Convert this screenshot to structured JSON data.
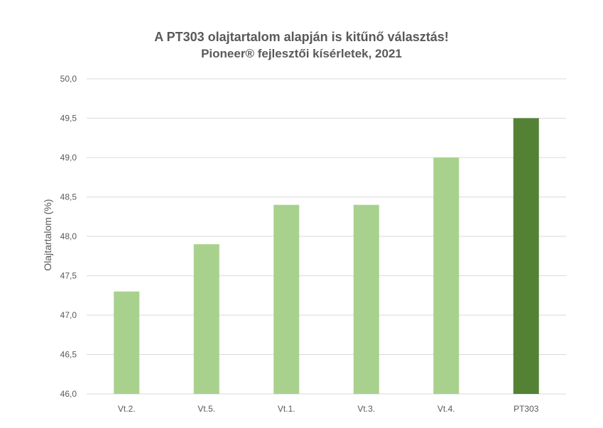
{
  "chart_data": {
    "type": "bar",
    "title": "A PT303 olajtartalom alapján is kitűnő választás!",
    "subtitle": "Pioneer® fejlesztői kísérletek, 2021",
    "xlabel": "",
    "ylabel": "Olajtartalom (%)",
    "categories": [
      "Vt.2.",
      "Vt.5.",
      "Vt.1.",
      "Vt.3.",
      "Vt.4.",
      "PT303"
    ],
    "values": [
      47.3,
      47.9,
      48.4,
      48.4,
      49.0,
      49.5
    ],
    "ylim": [
      46.0,
      50.0
    ],
    "yticks": [
      "46,0",
      "46,5",
      "47,0",
      "47,5",
      "48,0",
      "48,5",
      "49,0",
      "49,5",
      "50,0"
    ],
    "grid": true,
    "legend": "none",
    "colors": {
      "default_bar": "#a9d18e",
      "highlight_bar": "#548235",
      "highlight_category": "PT303",
      "grid": "#d9d9d9",
      "text": "#595959"
    }
  }
}
